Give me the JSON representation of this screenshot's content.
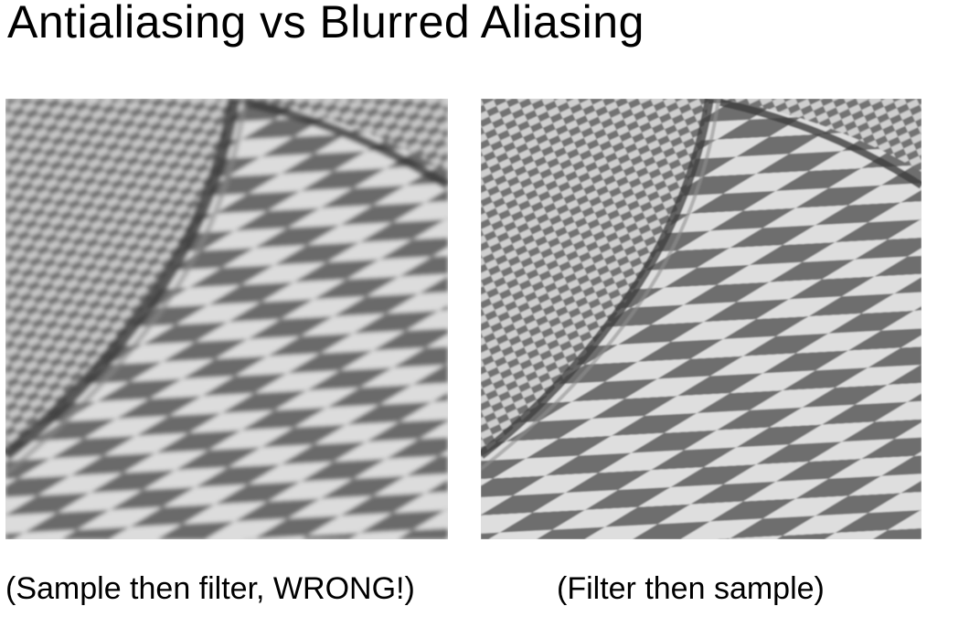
{
  "title": "Antialiasing vs Blurred Aliasing",
  "panels": [
    {
      "caption": "(Sample then filter, WRONG!)",
      "image": "checkerboard-blurred-aliasing"
    },
    {
      "caption": "(Filter then sample)",
      "image": "checkerboard-antialiased"
    }
  ],
  "colors": {
    "dark_tile": "#6b6b6b",
    "light_tile": "#dcdcdc",
    "background": "#ffffff"
  }
}
